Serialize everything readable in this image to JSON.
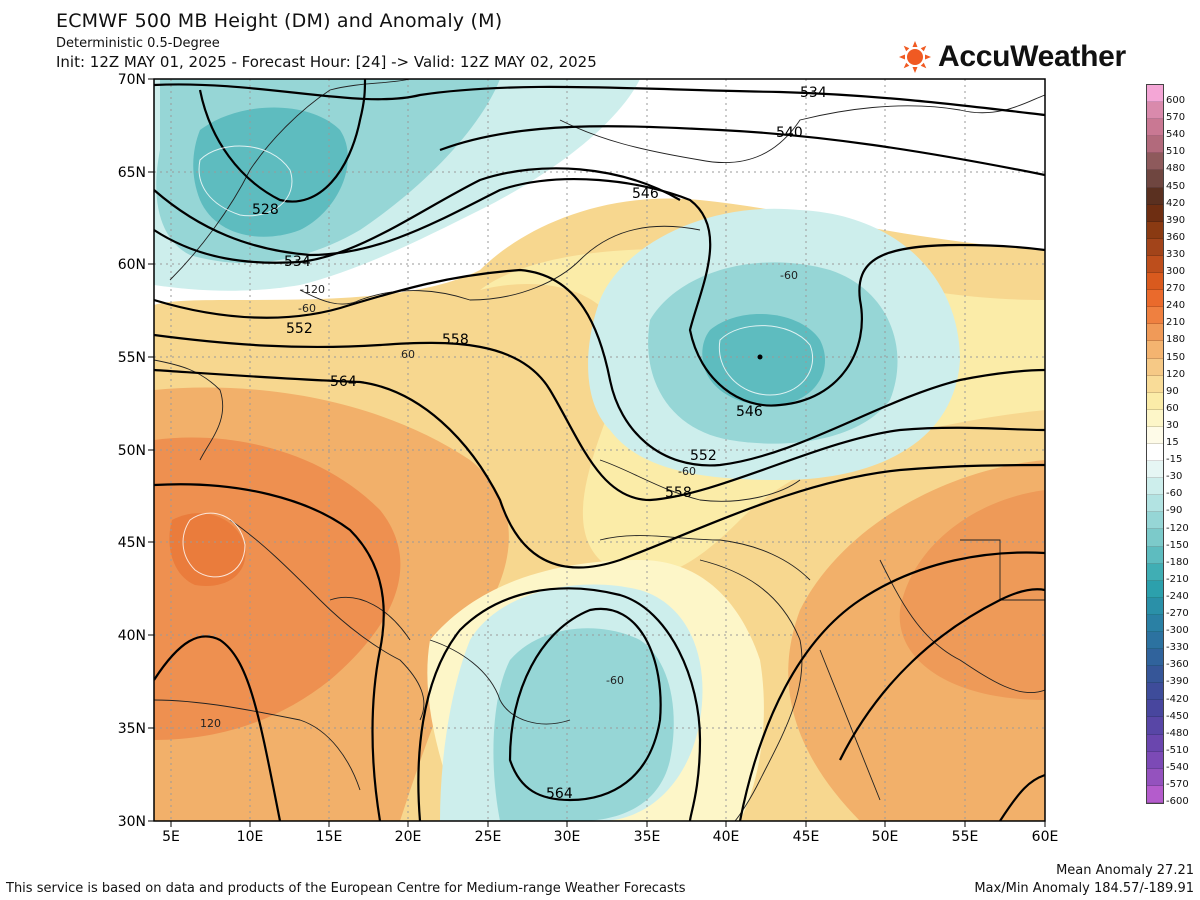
{
  "header": {
    "title": "ECMWF 500 MB Height (DM) and Anomaly (M)",
    "subtitle": "Deterministic 0.5-Degree",
    "init_line": "Init: 12Z MAY 01, 2025 - Forecast Hour: [24] -> Valid: 12Z MAY 02, 2025"
  },
  "brand": {
    "name": "AccuWeather",
    "icon": "sun-icon",
    "color": "#f05a22"
  },
  "map": {
    "lon_range": [
      4,
      60
    ],
    "lat_range": [
      30,
      70
    ],
    "lon_ticks": [
      "5E",
      "10E",
      "15E",
      "20E",
      "25E",
      "30E",
      "35E",
      "40E",
      "45E",
      "50E",
      "55E",
      "60E"
    ],
    "lat_ticks": [
      "70N",
      "65N",
      "60N",
      "55N",
      "50N",
      "45N",
      "40N",
      "35N",
      "30N"
    ],
    "height_contour_labels": [
      "534",
      "540",
      "546",
      "528",
      "534",
      "552",
      "558",
      "564",
      "546",
      "552",
      "558",
      "564"
    ],
    "anomaly_labels": [
      "-120",
      "-60",
      "60",
      "-60",
      "-60",
      "-60",
      "120"
    ]
  },
  "legend": {
    "labels": [
      "600",
      "570",
      "540",
      "510",
      "480",
      "450",
      "420",
      "390",
      "360",
      "330",
      "300",
      "270",
      "240",
      "210",
      "180",
      "150",
      "120",
      "90",
      "60",
      "30",
      "15",
      "-15",
      "-30",
      "-60",
      "-90",
      "-120",
      "-150",
      "-180",
      "-210",
      "-240",
      "-270",
      "-300",
      "-330",
      "-360",
      "-390",
      "-420",
      "-450",
      "-480",
      "-510",
      "-540",
      "-570",
      "-600"
    ],
    "colors": [
      "#f4a6d6",
      "#d98aac",
      "#c97893",
      "#b26a7c",
      "#8e5a5c",
      "#6f4640",
      "#5a3020",
      "#6e2e12",
      "#8a3a12",
      "#a2441a",
      "#bd4e1c",
      "#d95a1e",
      "#ea6a2c",
      "#ef8040",
      "#f09a58",
      "#f4b470",
      "#f6c986",
      "#f9dc98",
      "#fbeca8",
      "#fdf6c8",
      "#fefbe8",
      "#ffffff",
      "#e6f6f4",
      "#cdeeec",
      "#b2e3e2",
      "#96d6d6",
      "#7ccaca",
      "#5ebcbf",
      "#40aeb4",
      "#2ca0ac",
      "#2a90a8",
      "#2a80a4",
      "#2c72a0",
      "#30639c",
      "#365698",
      "#3e4c9a",
      "#48469e",
      "#5846a6",
      "#6a46ae",
      "#7c4ab6",
      "#9452be",
      "#b45ccc"
    ]
  },
  "footer": {
    "source_note": "This service is based on data and products of the European Centre for Medium-range Weather Forecasts",
    "mean_anomaly": "Mean Anomaly 27.21",
    "max_min_anomaly": "Max/Min Anomaly 184.57/-189.91"
  }
}
